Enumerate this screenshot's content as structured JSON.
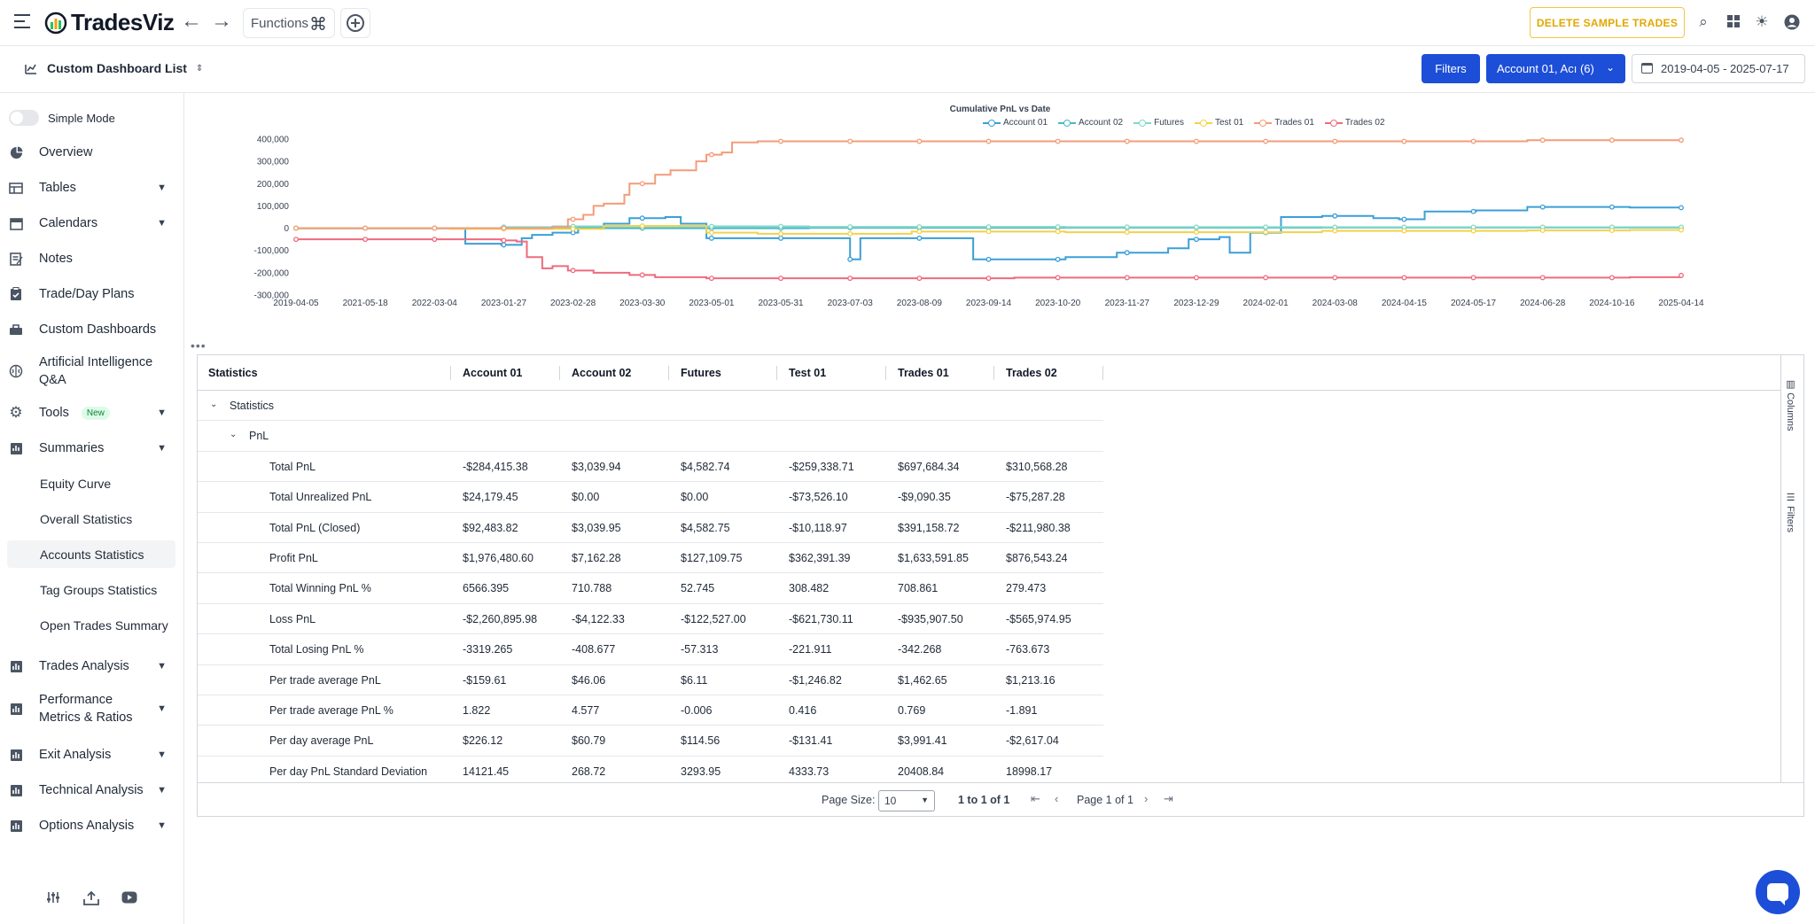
{
  "app": {
    "name": "TradesViz"
  },
  "topbar": {
    "functions_label": "Functions",
    "delete_label": "DELETE SAMPLE TRADES"
  },
  "subbar": {
    "dashboard_list_label": "Custom Dashboard List",
    "filters_label": "Filters",
    "account_label": "Account 01, Acı (6)",
    "date_range": "2019-04-05 - 2025-07-17"
  },
  "sidebar": {
    "simple_mode_label": "Simple Mode",
    "items": [
      {
        "label": "Overview",
        "icon": "pie-chart-icon"
      },
      {
        "label": "Tables",
        "icon": "table-icon",
        "expandable": true
      },
      {
        "label": "Calendars",
        "icon": "calendar-icon",
        "expandable": true
      },
      {
        "label": "Notes",
        "icon": "notes-icon"
      },
      {
        "label": "Trade/Day Plans",
        "icon": "clipboard-icon"
      },
      {
        "label": "Custom Dashboards",
        "icon": "dashboard-icon"
      },
      {
        "label": "Artificial Intelligence Q&A",
        "icon": "brain-icon"
      },
      {
        "label": "Tools",
        "icon": "gear-icon",
        "badge": "New",
        "expandable": true
      },
      {
        "label": "Summaries",
        "icon": "summary-icon",
        "expandable": true
      }
    ],
    "sub_items": [
      "Equity Curve",
      "Overall Statistics",
      "Accounts Statistics",
      "Tag Groups Statistics",
      "Open Trades Summary"
    ],
    "active_sub": "Accounts Statistics",
    "lower_items": [
      {
        "label": "Trades Analysis",
        "icon": "bar-chart-icon"
      },
      {
        "label": "Performance Metrics & Ratios",
        "icon": "bar-chart-icon"
      },
      {
        "label": "Exit Analysis",
        "icon": "bar-chart-icon"
      },
      {
        "label": "Technical Analysis",
        "icon": "bar-chart-icon"
      },
      {
        "label": "Options Analysis",
        "icon": "bar-chart-icon"
      }
    ]
  },
  "chart_data": {
    "type": "line",
    "title": "Cumulative PnL  vs Date",
    "x_tick_labels": [
      "2019-04-05",
      "2021-05-18",
      "2022-03-04",
      "2023-01-27",
      "2023-02-28",
      "2023-03-30",
      "2023-05-01",
      "2023-05-31",
      "2023-07-03",
      "2023-08-09",
      "2023-09-14",
      "2023-10-20",
      "2023-11-27",
      "2023-12-29",
      "2024-02-01",
      "2024-03-08",
      "2024-04-15",
      "2024-05-17",
      "2024-06-28",
      "2024-10-16",
      "2025-04-14"
    ],
    "y_ticks": [
      400000,
      300000,
      200000,
      100000,
      0,
      -100000,
      -200000,
      -300000
    ],
    "y_tick_labels": [
      "400,000",
      "300,000",
      "200,000",
      "100,000",
      "0",
      "-100,000",
      "-200,000",
      "-300,000"
    ],
    "ylim": [
      -300000,
      400000
    ],
    "legend_position": "top-center",
    "series": [
      {
        "name": "Account 01",
        "color": "#3b9fd8",
        "points": [
          [
            0,
            0
          ],
          [
            3,
            0
          ],
          [
            3.3,
            -70000
          ],
          [
            4,
            -75000
          ],
          [
            4.4,
            -45000
          ],
          [
            4.6,
            -30000
          ],
          [
            5,
            -20000
          ],
          [
            5.5,
            5000
          ],
          [
            6,
            20000
          ],
          [
            6.5,
            45000
          ],
          [
            7.2,
            50000
          ],
          [
            7.5,
            20000
          ],
          [
            8,
            -45000
          ],
          [
            9,
            -45000
          ],
          [
            10,
            -45000
          ],
          [
            10.5,
            -45000
          ],
          [
            10.8,
            -140000
          ],
          [
            11,
            -45000
          ],
          [
            12,
            -45000
          ],
          [
            13,
            -45000
          ],
          [
            13.2,
            -140000
          ],
          [
            14,
            -140000
          ],
          [
            15,
            -130000
          ],
          [
            16,
            -110000
          ],
          [
            17,
            -90000
          ],
          [
            17.4,
            -50000
          ],
          [
            18,
            -40000
          ],
          [
            18.2,
            -110000
          ],
          [
            18.5,
            -110000
          ],
          [
            18.6,
            -20000
          ],
          [
            19.2,
            50000
          ],
          [
            20,
            55000
          ],
          [
            21,
            45000
          ],
          [
            21.5,
            40000
          ],
          [
            22,
            75000
          ],
          [
            23,
            80000
          ],
          [
            24,
            95000
          ],
          [
            25,
            95000
          ],
          [
            26,
            93000
          ],
          [
            27,
            92000
          ]
        ]
      },
      {
        "name": "Account 02",
        "color": "#48b9c7",
        "points": [
          [
            0,
            0
          ],
          [
            5,
            0
          ],
          [
            10,
            2000
          ],
          [
            15,
            2500
          ],
          [
            20,
            3000
          ],
          [
            25,
            3000
          ],
          [
            27,
            3000
          ]
        ]
      },
      {
        "name": "Futures",
        "color": "#7fd8c8",
        "points": [
          [
            0,
            0
          ],
          [
            4,
            5000
          ],
          [
            5,
            8000
          ],
          [
            10,
            6000
          ],
          [
            15,
            5000
          ],
          [
            20,
            4500
          ],
          [
            25,
            4500
          ],
          [
            27,
            4500
          ]
        ]
      },
      {
        "name": "Test 01",
        "color": "#f2d24b",
        "points": [
          [
            0,
            0
          ],
          [
            3,
            -3000
          ],
          [
            6,
            10000
          ],
          [
            8,
            -20000
          ],
          [
            9,
            -25000
          ],
          [
            12,
            -15000
          ],
          [
            15,
            -18000
          ],
          [
            20,
            -12000
          ],
          [
            24,
            -10000
          ],
          [
            26,
            -8000
          ],
          [
            27,
            -8000
          ]
        ]
      },
      {
        "name": "Trades 01",
        "color": "#f39c7a",
        "points": [
          [
            0,
            0
          ],
          [
            2,
            0
          ],
          [
            4,
            0
          ],
          [
            5,
            5000
          ],
          [
            5.3,
            40000
          ],
          [
            5.6,
            60000
          ],
          [
            5.8,
            100000
          ],
          [
            6,
            110000
          ],
          [
            6.4,
            150000
          ],
          [
            6.5,
            200000
          ],
          [
            7,
            240000
          ],
          [
            7.3,
            260000
          ],
          [
            7.5,
            260000
          ],
          [
            7.8,
            300000
          ],
          [
            8,
            330000
          ],
          [
            8.3,
            340000
          ],
          [
            8.5,
            385000
          ],
          [
            9,
            390000
          ],
          [
            12,
            390000
          ],
          [
            18,
            390000
          ],
          [
            24,
            395000
          ],
          [
            27,
            395000
          ]
        ]
      },
      {
        "name": "Trades 02",
        "color": "#ee6b7e",
        "points": [
          [
            0,
            -50000
          ],
          [
            3,
            -50000
          ],
          [
            4,
            -55000
          ],
          [
            4.3,
            -60000
          ],
          [
            4.5,
            -130000
          ],
          [
            4.8,
            -180000
          ],
          [
            5,
            -170000
          ],
          [
            5.3,
            -190000
          ],
          [
            5.8,
            -200000
          ],
          [
            6.5,
            -210000
          ],
          [
            7,
            -220000
          ],
          [
            8,
            -225000
          ],
          [
            10,
            -225000
          ],
          [
            14,
            -222000
          ],
          [
            20,
            -222000
          ],
          [
            25,
            -222000
          ],
          [
            26,
            -220000
          ],
          [
            27,
            -212000
          ]
        ]
      }
    ],
    "x_max": 27
  },
  "grid": {
    "headers": [
      "Statistics",
      "Account 01",
      "Account 02",
      "Futures",
      "Test 01",
      "Trades 01",
      "Trades 02"
    ],
    "group_label": "Statistics",
    "subgroup_label": "PnL",
    "rows": [
      [
        "Total PnL",
        "-$284,415.38",
        "$3,039.94",
        "$4,582.74",
        "-$259,338.71",
        "$697,684.34",
        "$310,568.28"
      ],
      [
        "Total Unrealized PnL",
        "$24,179.45",
        "$0.00",
        "$0.00",
        "-$73,526.10",
        "-$9,090.35",
        "-$75,287.28"
      ],
      [
        "Total PnL (Closed)",
        "$92,483.82",
        "$3,039.95",
        "$4,582.75",
        "-$10,118.97",
        "$391,158.72",
        "-$211,980.38"
      ],
      [
        "Profit PnL",
        "$1,976,480.60",
        "$7,162.28",
        "$127,109.75",
        "$362,391.39",
        "$1,633,591.85",
        "$876,543.24"
      ],
      [
        "Total Winning PnL %",
        "6566.395",
        "710.788",
        "52.745",
        "308.482",
        "708.861",
        "279.473"
      ],
      [
        "Loss PnL",
        "-$2,260,895.98",
        "-$4,122.33",
        "-$122,527.00",
        "-$621,730.11",
        "-$935,907.50",
        "-$565,974.95"
      ],
      [
        "Total Losing PnL %",
        "-3319.265",
        "-408.677",
        "-57.313",
        "-221.911",
        "-342.268",
        "-763.673"
      ],
      [
        "Per trade average PnL",
        "-$159.61",
        "$46.06",
        "$6.11",
        "-$1,246.82",
        "$1,462.65",
        "$1,213.16"
      ],
      [
        "Per trade average PnL %",
        "1.822",
        "4.577",
        "-0.006",
        "0.416",
        "0.769",
        "-1.891"
      ],
      [
        "Per day average PnL",
        "$226.12",
        "$60.79",
        "$114.56",
        "-$131.41",
        "$3,991.41",
        "-$2,617.04"
      ],
      [
        "Per day PnL Standard Deviation",
        "14121.45",
        "268.72",
        "3293.95",
        "4333.73",
        "20408.84",
        "18998.17"
      ]
    ],
    "side_tabs": [
      "Columns",
      "Filters"
    ],
    "footer": {
      "page_size_label": "Page Size:",
      "page_size_value": "10",
      "range_text": "1 to 1 of 1",
      "page_text": "Page 1 of 1"
    }
  }
}
